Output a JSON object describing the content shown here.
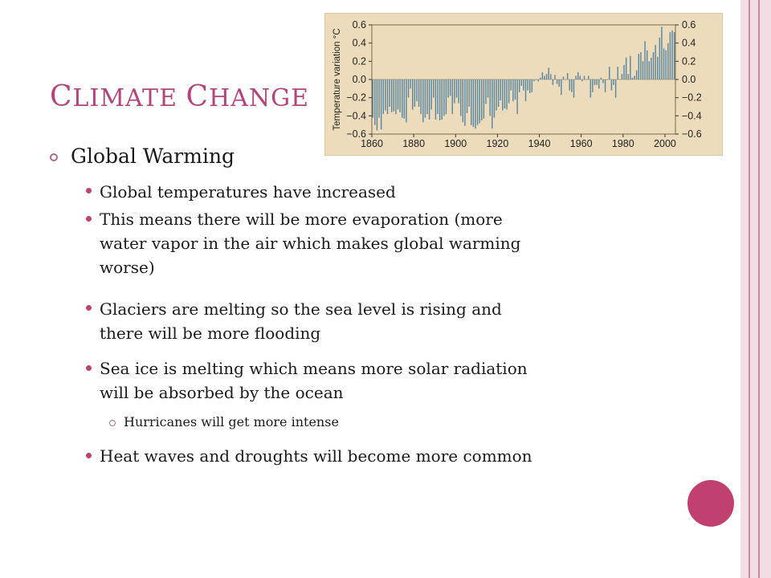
{
  "title": {
    "words": [
      "Climate",
      "Change"
    ],
    "color": "#b3457a"
  },
  "level1": {
    "text": "Global Warming"
  },
  "bullets": [
    {
      "lines": [
        "Global temperatures have increased"
      ]
    },
    {
      "lines": [
        "This means there will be more evaporation (more",
        "water vapor in the air which makes global warming",
        "worse)"
      ]
    },
    {
      "lines": [
        "Glaciers are melting so the sea level is rising and",
        "there will be more flooding"
      ]
    },
    {
      "lines": [
        "Sea ice is melting which means more solar radiation",
        "will be absorbed by the ocean"
      ]
    },
    {
      "lines": [
        "Heat waves and droughts will become more common"
      ]
    }
  ],
  "subbullet": {
    "text": "Hurricanes will get more intense"
  },
  "colors": {
    "accent": "#c0416f",
    "stripe_light": "#f2dde4",
    "stripe_dark": "#c98aa1",
    "chart_bg": "#ecdcbc",
    "bar": "#5a86a0"
  },
  "chart_data": {
    "type": "bar",
    "title": "",
    "ylabel": "Temperature variation °C",
    "xlabel": "",
    "ylim": [
      -0.6,
      0.6
    ],
    "xlim": [
      1860,
      2005
    ],
    "x_ticks": [
      "1860",
      "1880",
      "1900",
      "1920",
      "1940",
      "1960",
      "1980",
      "2000"
    ],
    "y_ticks_left": [
      "0.6",
      "0.4",
      "0.2",
      "0.0",
      "−0.2",
      "−0.4",
      "−0.6"
    ],
    "y_ticks_right": [
      "0.6",
      "0.4",
      "0.2",
      "0.0",
      "−0.2",
      "−0.4",
      "−0.6"
    ],
    "grid": false,
    "series": [
      {
        "x": [
          1860,
          1861,
          1862,
          1863,
          1864,
          1865,
          1866,
          1867,
          1868,
          1869,
          1870,
          1871,
          1872,
          1873,
          1874,
          1875,
          1876,
          1877,
          1878,
          1879,
          1880,
          1881,
          1882,
          1883,
          1884,
          1885,
          1886,
          1887,
          1888,
          1889,
          1890,
          1891,
          1892,
          1893,
          1894,
          1895,
          1896,
          1897,
          1898,
          1899,
          1900,
          1901,
          1902,
          1903,
          1904,
          1905,
          1906,
          1907,
          1908,
          1909,
          1910,
          1911,
          1912,
          1913,
          1914,
          1915,
          1916,
          1917,
          1918,
          1919,
          1920,
          1921,
          1922,
          1923,
          1924,
          1925,
          1926,
          1927,
          1928,
          1929,
          1930,
          1931,
          1932,
          1933,
          1934,
          1935,
          1936,
          1937,
          1938,
          1939,
          1940,
          1941,
          1942,
          1943,
          1944,
          1945,
          1946,
          1947,
          1948,
          1949,
          1950,
          1951,
          1952,
          1953,
          1954,
          1955,
          1956,
          1957,
          1958,
          1959,
          1960,
          1961,
          1962,
          1963,
          1964,
          1965,
          1966,
          1967,
          1968,
          1969,
          1970,
          1971,
          1972,
          1973,
          1974,
          1975,
          1976,
          1977,
          1978,
          1979,
          1980,
          1981,
          1982,
          1983,
          1984,
          1985,
          1986,
          1987,
          1988,
          1989,
          1990,
          1991,
          1992,
          1993,
          1994,
          1995,
          1996,
          1997,
          1998,
          1999,
          2000,
          2001,
          2002,
          2003,
          2004
        ],
        "values": [
          -0.42,
          -0.5,
          -0.56,
          -0.42,
          -0.55,
          -0.38,
          -0.34,
          -0.38,
          -0.3,
          -0.36,
          -0.35,
          -0.38,
          -0.33,
          -0.36,
          -0.42,
          -0.43,
          -0.47,
          -0.2,
          -0.1,
          -0.33,
          -0.3,
          -0.24,
          -0.3,
          -0.38,
          -0.47,
          -0.42,
          -0.38,
          -0.44,
          -0.33,
          -0.2,
          -0.44,
          -0.38,
          -0.45,
          -0.44,
          -0.4,
          -0.38,
          -0.2,
          -0.18,
          -0.38,
          -0.26,
          -0.2,
          -0.26,
          -0.4,
          -0.47,
          -0.51,
          -0.37,
          -0.3,
          -0.5,
          -0.52,
          -0.54,
          -0.5,
          -0.48,
          -0.45,
          -0.43,
          -0.27,
          -0.2,
          -0.4,
          -0.54,
          -0.42,
          -0.34,
          -0.3,
          -0.23,
          -0.34,
          -0.32,
          -0.33,
          -0.26,
          -0.12,
          -0.24,
          -0.22,
          -0.38,
          -0.14,
          -0.07,
          -0.12,
          -0.24,
          -0.12,
          -0.15,
          -0.14,
          -0.02,
          0.0,
          -0.02,
          0.02,
          0.08,
          0.04,
          0.06,
          0.13,
          0.06,
          -0.06,
          0.05,
          -0.05,
          -0.08,
          -0.17,
          0.03,
          0.0,
          0.07,
          -0.12,
          -0.14,
          -0.2,
          0.04,
          0.08,
          0.04,
          -0.02,
          0.04,
          0.0,
          0.04,
          -0.2,
          -0.14,
          -0.06,
          -0.06,
          -0.1,
          0.02,
          -0.04,
          -0.14,
          0.0,
          0.14,
          -0.12,
          -0.06,
          -0.2,
          0.14,
          0.0,
          0.06,
          0.16,
          0.24,
          0.06,
          0.26,
          0.02,
          0.04,
          0.1,
          0.28,
          0.3,
          0.2,
          0.42,
          0.32,
          0.2,
          0.24,
          0.3,
          0.38,
          0.25,
          0.46,
          0.58,
          0.34,
          0.32,
          0.4,
          0.52,
          0.54,
          0.52
        ]
      }
    ]
  }
}
